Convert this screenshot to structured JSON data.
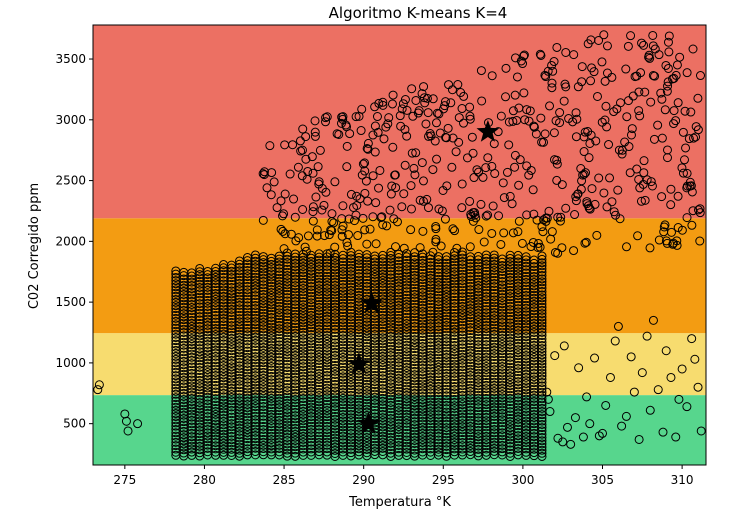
{
  "chart_data": {
    "type": "scatter",
    "title": "Algoritmo K-means K=4",
    "xlabel": "Temperatura °K",
    "ylabel": "C02 Corregido ppm",
    "xlim": [
      273,
      311.5
    ],
    "ylim": [
      160,
      3780
    ],
    "x_ticks": [
      275,
      280,
      285,
      290,
      295,
      300,
      305,
      310
    ],
    "y_ticks": [
      500,
      1000,
      1500,
      2000,
      2500,
      3000,
      3500
    ],
    "grid": false,
    "legend": "none",
    "regions": [
      {
        "y_from": 160,
        "y_to": 735,
        "color": "#57d68d"
      },
      {
        "y_from": 735,
        "y_to": 1245,
        "color": "#f7dc6f"
      },
      {
        "y_from": 1245,
        "y_to": 2190,
        "color": "#f39c12"
      },
      {
        "y_from": 2190,
        "y_to": 3780,
        "color": "#ec7063"
      }
    ],
    "centroids": [
      {
        "x": 290.3,
        "y": 500
      },
      {
        "x": 289.7,
        "y": 990
      },
      {
        "x": 290.5,
        "y": 1490
      },
      {
        "x": 297.8,
        "y": 2900
      }
    ],
    "dense_columns": {
      "x_start": 278.2,
      "x_end": 301.2,
      "step": 0.5,
      "y_low": 230,
      "y_high": [
        1760,
        1750,
        1760,
        1790,
        1760,
        1780,
        1810,
        1830,
        1850,
        1880,
        1900,
        1880,
        1870,
        1890,
        1910,
        1920,
        1900,
        1890,
        1910,
        1920,
        1910,
        1900,
        1920,
        1900,
        1910,
        1880,
        1900,
        1920,
        1910,
        1900,
        1890,
        1910,
        1900,
        1880,
        1900,
        1910,
        1920,
        1900,
        1880,
        1890,
        1900,
        1880,
        1910,
        1900,
        1890,
        1870,
        1880
      ]
    },
    "upper_points": {
      "x_start": 283.5,
      "x_end": 311.2,
      "y_low": 1900,
      "y_high": 3700,
      "count": 560
    },
    "scatter_points": [
      [
        273.3,
        780
      ],
      [
        273.4,
        820
      ],
      [
        275.0,
        580
      ],
      [
        275.1,
        520
      ],
      [
        275.2,
        440
      ],
      [
        275.8,
        500
      ],
      [
        301.5,
        760
      ],
      [
        301.6,
        700
      ],
      [
        301.7,
        600
      ],
      [
        302.2,
        380
      ],
      [
        302.5,
        350
      ],
      [
        302.8,
        470
      ],
      [
        303.0,
        330
      ],
      [
        303.3,
        550
      ],
      [
        303.8,
        390
      ],
      [
        304.0,
        720
      ],
      [
        304.2,
        500
      ],
      [
        304.5,
        1040
      ],
      [
        304.8,
        400
      ],
      [
        305.0,
        420
      ],
      [
        305.2,
        650
      ],
      [
        305.5,
        880
      ],
      [
        306.0,
        1300
      ],
      [
        306.2,
        480
      ],
      [
        306.5,
        560
      ],
      [
        306.8,
        1050
      ],
      [
        307.0,
        760
      ],
      [
        307.3,
        370
      ],
      [
        307.5,
        920
      ],
      [
        308.0,
        610
      ],
      [
        308.2,
        1350
      ],
      [
        308.5,
        780
      ],
      [
        308.8,
        430
      ],
      [
        309.0,
        1100
      ],
      [
        309.3,
        880
      ],
      [
        309.6,
        390
      ],
      [
        310.0,
        950
      ],
      [
        310.3,
        640
      ],
      [
        310.6,
        1200
      ],
      [
        311.0,
        800
      ],
      [
        311.2,
        440
      ],
      [
        310.8,
        1030
      ],
      [
        302.0,
        1060
      ],
      [
        302.6,
        1140
      ],
      [
        303.5,
        960
      ],
      [
        305.8,
        1180
      ],
      [
        307.8,
        1220
      ],
      [
        309.8,
        700
      ]
    ]
  }
}
